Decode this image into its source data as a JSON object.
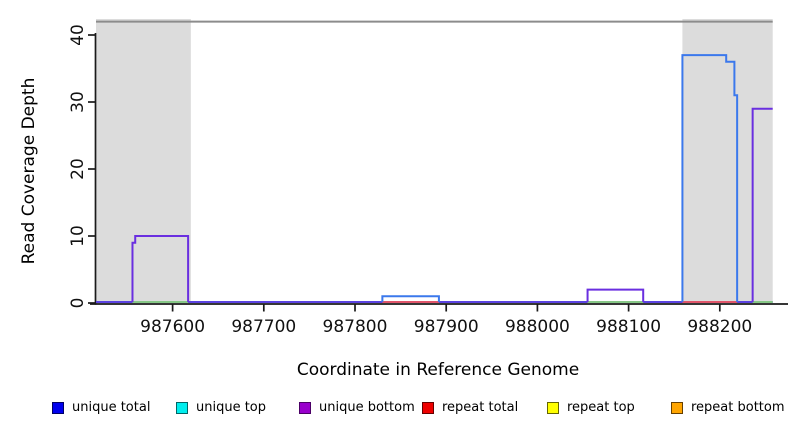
{
  "chart_data": {
    "type": "line",
    "xlabel": "Coordinate in Reference Genome",
    "ylabel": "Read Coverage Depth",
    "xlim": [
      987516,
      988258
    ],
    "ylim": [
      0,
      42
    ],
    "x_ticks": [
      987600,
      987700,
      987800,
      987900,
      988000,
      988100,
      988200
    ],
    "y_ticks": [
      0,
      10,
      20,
      30,
      40
    ],
    "grid": false,
    "repeat_regions": [
      [
        987516,
        987620
      ],
      [
        988159,
        988258
      ]
    ],
    "top_rule_y": 42,
    "baseline": {
      "color": "#5B43E0",
      "range": [
        987516,
        988258
      ]
    },
    "baseline_overlays": [
      {
        "name": "green-under-purple-peak-1",
        "color": "#86C786",
        "range": [
          987556,
          987617
        ]
      },
      {
        "name": "green-under-purple-peak-2",
        "color": "#86C786",
        "range": [
          988055,
          988116
        ]
      },
      {
        "name": "green-under-purple-peak-3",
        "color": "#86C786",
        "range": [
          988236,
          988258
        ]
      },
      {
        "name": "red-under-blue-peak-1",
        "color": "#E0556A",
        "range": [
          987830,
          987892
        ]
      },
      {
        "name": "red-under-blue-peak-2",
        "color": "#E0556A",
        "range": [
          988159,
          988219
        ]
      }
    ],
    "series": [
      {
        "name": "unique bottom",
        "color": "#6A2FE0",
        "segments": [
          [
            [
              987556,
              0
            ],
            [
              987556,
              9
            ],
            [
              987559,
              9
            ],
            [
              987559,
              10
            ],
            [
              987617,
              10
            ],
            [
              987617,
              0
            ]
          ],
          [
            [
              988055,
              0
            ],
            [
              988055,
              2
            ],
            [
              988116,
              2
            ],
            [
              988116,
              0
            ]
          ],
          [
            [
              988236,
              0
            ],
            [
              988236,
              29
            ],
            [
              988258,
              29
            ]
          ]
        ]
      },
      {
        "name": "unique total",
        "color": "#3B78EC",
        "segments": [
          [
            [
              987830,
              0
            ],
            [
              987830,
              1
            ],
            [
              987892,
              1
            ],
            [
              987892,
              0
            ]
          ],
          [
            [
              988159,
              0
            ],
            [
              988159,
              37
            ],
            [
              988207,
              37
            ],
            [
              988207,
              36
            ],
            [
              988216,
              36
            ],
            [
              988216,
              31
            ],
            [
              988219,
              31
            ],
            [
              988219,
              0
            ]
          ]
        ]
      }
    ]
  },
  "legend": {
    "items": [
      {
        "label": "unique total",
        "color": "#0000EE",
        "border": "#000066"
      },
      {
        "label": "unique top",
        "color": "#00EEEE",
        "border": "#006666"
      },
      {
        "label": "unique bottom",
        "color": "#9900CC",
        "border": "#4B0066"
      },
      {
        "label": "repeat total",
        "color": "#EE0000",
        "border": "#660000"
      },
      {
        "label": "repeat top",
        "color": "#FFFF00",
        "border": "#666600"
      },
      {
        "label": "repeat bottom",
        "color": "#FFA500",
        "border": "#663F00"
      }
    ]
  },
  "colors": {
    "repeat_region_fill": "#DCDCDC",
    "top_rule": "#8C8C8C",
    "axis": "#1A1A1A",
    "tick_label": "#111111"
  }
}
